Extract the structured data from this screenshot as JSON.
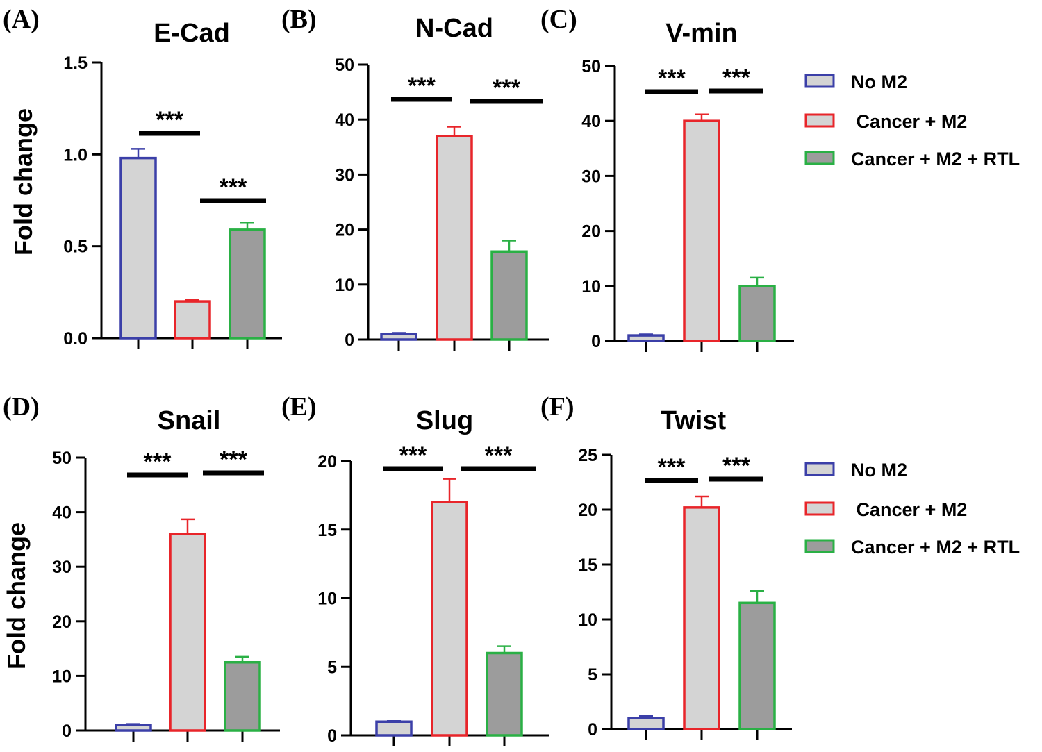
{
  "colors": {
    "no_m2": "#3b3fa8",
    "cancer_m2": "#e8252a",
    "cancer_m2_rtl": "#2ab045",
    "bar_light": "#d4d4d4",
    "bar_dark": "#9c9c9c",
    "axis": "#000000"
  },
  "ylabel": "Fold change",
  "significance_mark": "***",
  "legend": {
    "entries": [
      "No M2",
      " Cancer + M2",
      "Cancer + M2 + RTL"
    ]
  },
  "chart_data": [
    {
      "panel": "(A)",
      "type": "bar",
      "title": "E-Cad",
      "categories": [
        "No M2",
        "Cancer + M2",
        "Cancer + M2 + RTL"
      ],
      "values": [
        0.98,
        0.2,
        0.59
      ],
      "errors": [
        0.05,
        0.01,
        0.04
      ],
      "ylim": [
        0,
        1.5
      ],
      "yticks": [
        "0.0",
        "0.5",
        "1.0",
        "1.5"
      ],
      "yticks_values": [
        0,
        0.5,
        1.0,
        1.5
      ],
      "ylabel": "Fold change",
      "significance": [
        {
          "from": 0,
          "to": 1,
          "label": "***"
        },
        {
          "from": 1,
          "to": 2,
          "label": "***"
        }
      ]
    },
    {
      "panel": "(B)",
      "type": "bar",
      "title": "N-Cad",
      "categories": [
        "No M2",
        "Cancer + M2",
        "Cancer + M2 + RTL"
      ],
      "values": [
        1,
        37,
        16
      ],
      "errors": [
        0.2,
        1.7,
        2
      ],
      "ylim": [
        0,
        50
      ],
      "yticks": [
        "0",
        "10",
        "20",
        "30",
        "40",
        "50"
      ],
      "yticks_values": [
        0,
        10,
        20,
        30,
        40,
        50
      ],
      "ylabel": "",
      "significance": [
        {
          "from": 0,
          "to": 1,
          "label": "***"
        },
        {
          "from": 1,
          "to": 2,
          "label": "***"
        }
      ]
    },
    {
      "panel": "(C)",
      "type": "bar",
      "title": "V-min",
      "categories": [
        "No M2",
        "Cancer + M2",
        "Cancer + M2 + RTL"
      ],
      "values": [
        1,
        40,
        10
      ],
      "errors": [
        0.2,
        1.2,
        1.5
      ],
      "ylim": [
        0,
        50
      ],
      "yticks": [
        "0",
        "10",
        "20",
        "30",
        "40",
        "50"
      ],
      "yticks_values": [
        0,
        10,
        20,
        30,
        40,
        50
      ],
      "ylabel": "",
      "significance": [
        {
          "from": 0,
          "to": 1,
          "label": "***"
        },
        {
          "from": 1,
          "to": 2,
          "label": "***"
        }
      ]
    },
    {
      "panel": "(D)",
      "type": "bar",
      "title": "Snail",
      "categories": [
        "No M2",
        "Cancer + M2",
        "Cancer + M2 + RTL"
      ],
      "values": [
        1,
        36,
        12.5
      ],
      "errors": [
        0.2,
        2.7,
        1
      ],
      "ylim": [
        0,
        50
      ],
      "yticks": [
        "0",
        "10",
        "20",
        "30",
        "40",
        "50"
      ],
      "yticks_values": [
        0,
        10,
        20,
        30,
        40,
        50
      ],
      "ylabel": "Fold change",
      "significance": [
        {
          "from": 0,
          "to": 1,
          "label": "***"
        },
        {
          "from": 1,
          "to": 2,
          "label": "***"
        }
      ]
    },
    {
      "panel": "(E)",
      "type": "bar",
      "title": "Slug",
      "categories": [
        "No M2",
        "Cancer + M2",
        "Cancer + M2 + RTL"
      ],
      "values": [
        1,
        17,
        6
      ],
      "errors": [
        0.05,
        1.7,
        0.5
      ],
      "ylim": [
        0,
        20
      ],
      "yticks": [
        "0",
        "5",
        "10",
        "15",
        "20"
      ],
      "yticks_values": [
        0,
        5,
        10,
        15,
        20
      ],
      "ylabel": "",
      "significance": [
        {
          "from": 0,
          "to": 1,
          "label": "***"
        },
        {
          "from": 1,
          "to": 2,
          "label": "***"
        }
      ]
    },
    {
      "panel": "(F)",
      "type": "bar",
      "title": "Twist",
      "categories": [
        "No M2",
        "Cancer + M2",
        "Cancer + M2 + RTL"
      ],
      "values": [
        1,
        20.2,
        11.5
      ],
      "errors": [
        0.2,
        1,
        1.1
      ],
      "ylim": [
        0,
        25
      ],
      "yticks": [
        "0",
        "5",
        "10",
        "15",
        "20",
        "25"
      ],
      "yticks_values": [
        0,
        5,
        10,
        15,
        20,
        25
      ],
      "ylabel": "",
      "significance": [
        {
          "from": 0,
          "to": 1,
          "label": "***"
        },
        {
          "from": 1,
          "to": 2,
          "label": "***"
        }
      ]
    }
  ]
}
